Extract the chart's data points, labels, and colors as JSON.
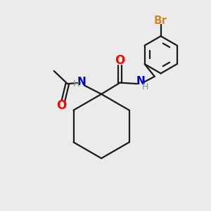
{
  "background_color": "#ebebeb",
  "bond_color": "#1a1a1a",
  "oxygen_color": "#ff0000",
  "nitrogen_color": "#0000cc",
  "bromine_color": "#cc8833",
  "h_color": "#669999",
  "line_width": 1.6,
  "figsize": [
    3.0,
    3.0
  ],
  "dpi": 100,
  "xlim": [
    0,
    10
  ],
  "ylim": [
    0,
    10
  ]
}
